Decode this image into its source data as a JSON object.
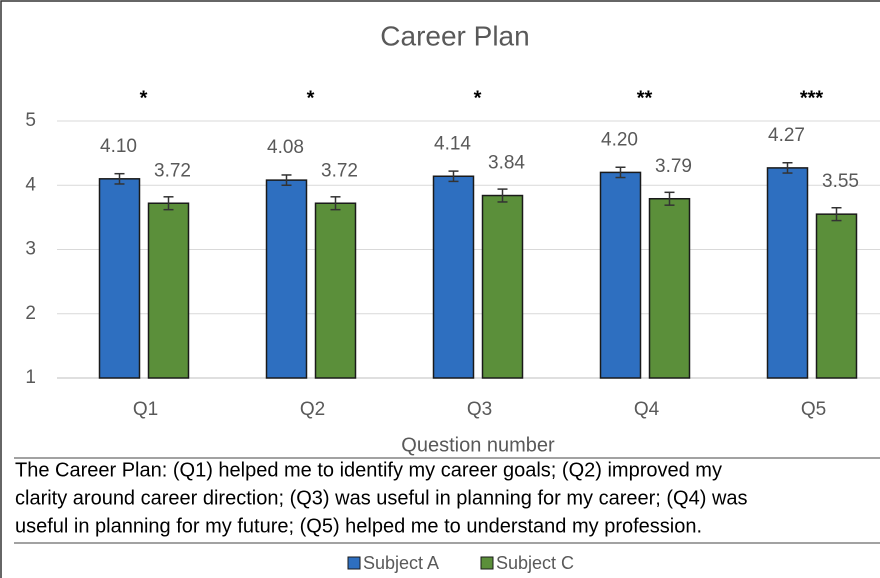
{
  "chart_data": {
    "type": "bar",
    "title": "Career Plan",
    "categories": [
      "Q1",
      "Q2",
      "Q3",
      "Q4",
      "Q5"
    ],
    "series": [
      {
        "name": "Subject A",
        "color": "#2e6fc0",
        "values": [
          4.1,
          4.08,
          4.14,
          4.2,
          4.27
        ],
        "value_labels": [
          "4.10",
          "4.08",
          "4.14",
          "4.20",
          "4.27"
        ],
        "errors": [
          0.08,
          0.08,
          0.08,
          0.08,
          0.08
        ]
      },
      {
        "name": "Subject C",
        "color": "#5b8f3a",
        "values": [
          3.72,
          3.72,
          3.84,
          3.79,
          3.55
        ],
        "errors": [
          0.1,
          0.1,
          0.1,
          0.1,
          0.1
        ]
      }
    ],
    "significance": [
      "*",
      "*",
      "*",
      "**",
      "***"
    ],
    "ylim": [
      1,
      5
    ],
    "yticks": [
      1,
      2,
      3,
      4,
      5
    ],
    "grid": true,
    "xlabel": "Question number",
    "caption": [
      "The Career Plan: (Q1) helped me to identify my career goals; (Q2) improved my",
      "clarity around career direction; (Q3) was useful in planning for my career; (Q4) was",
      "useful in planning for my future; (Q5) helped me to understand my profession."
    ],
    "legend": "bottom"
  }
}
